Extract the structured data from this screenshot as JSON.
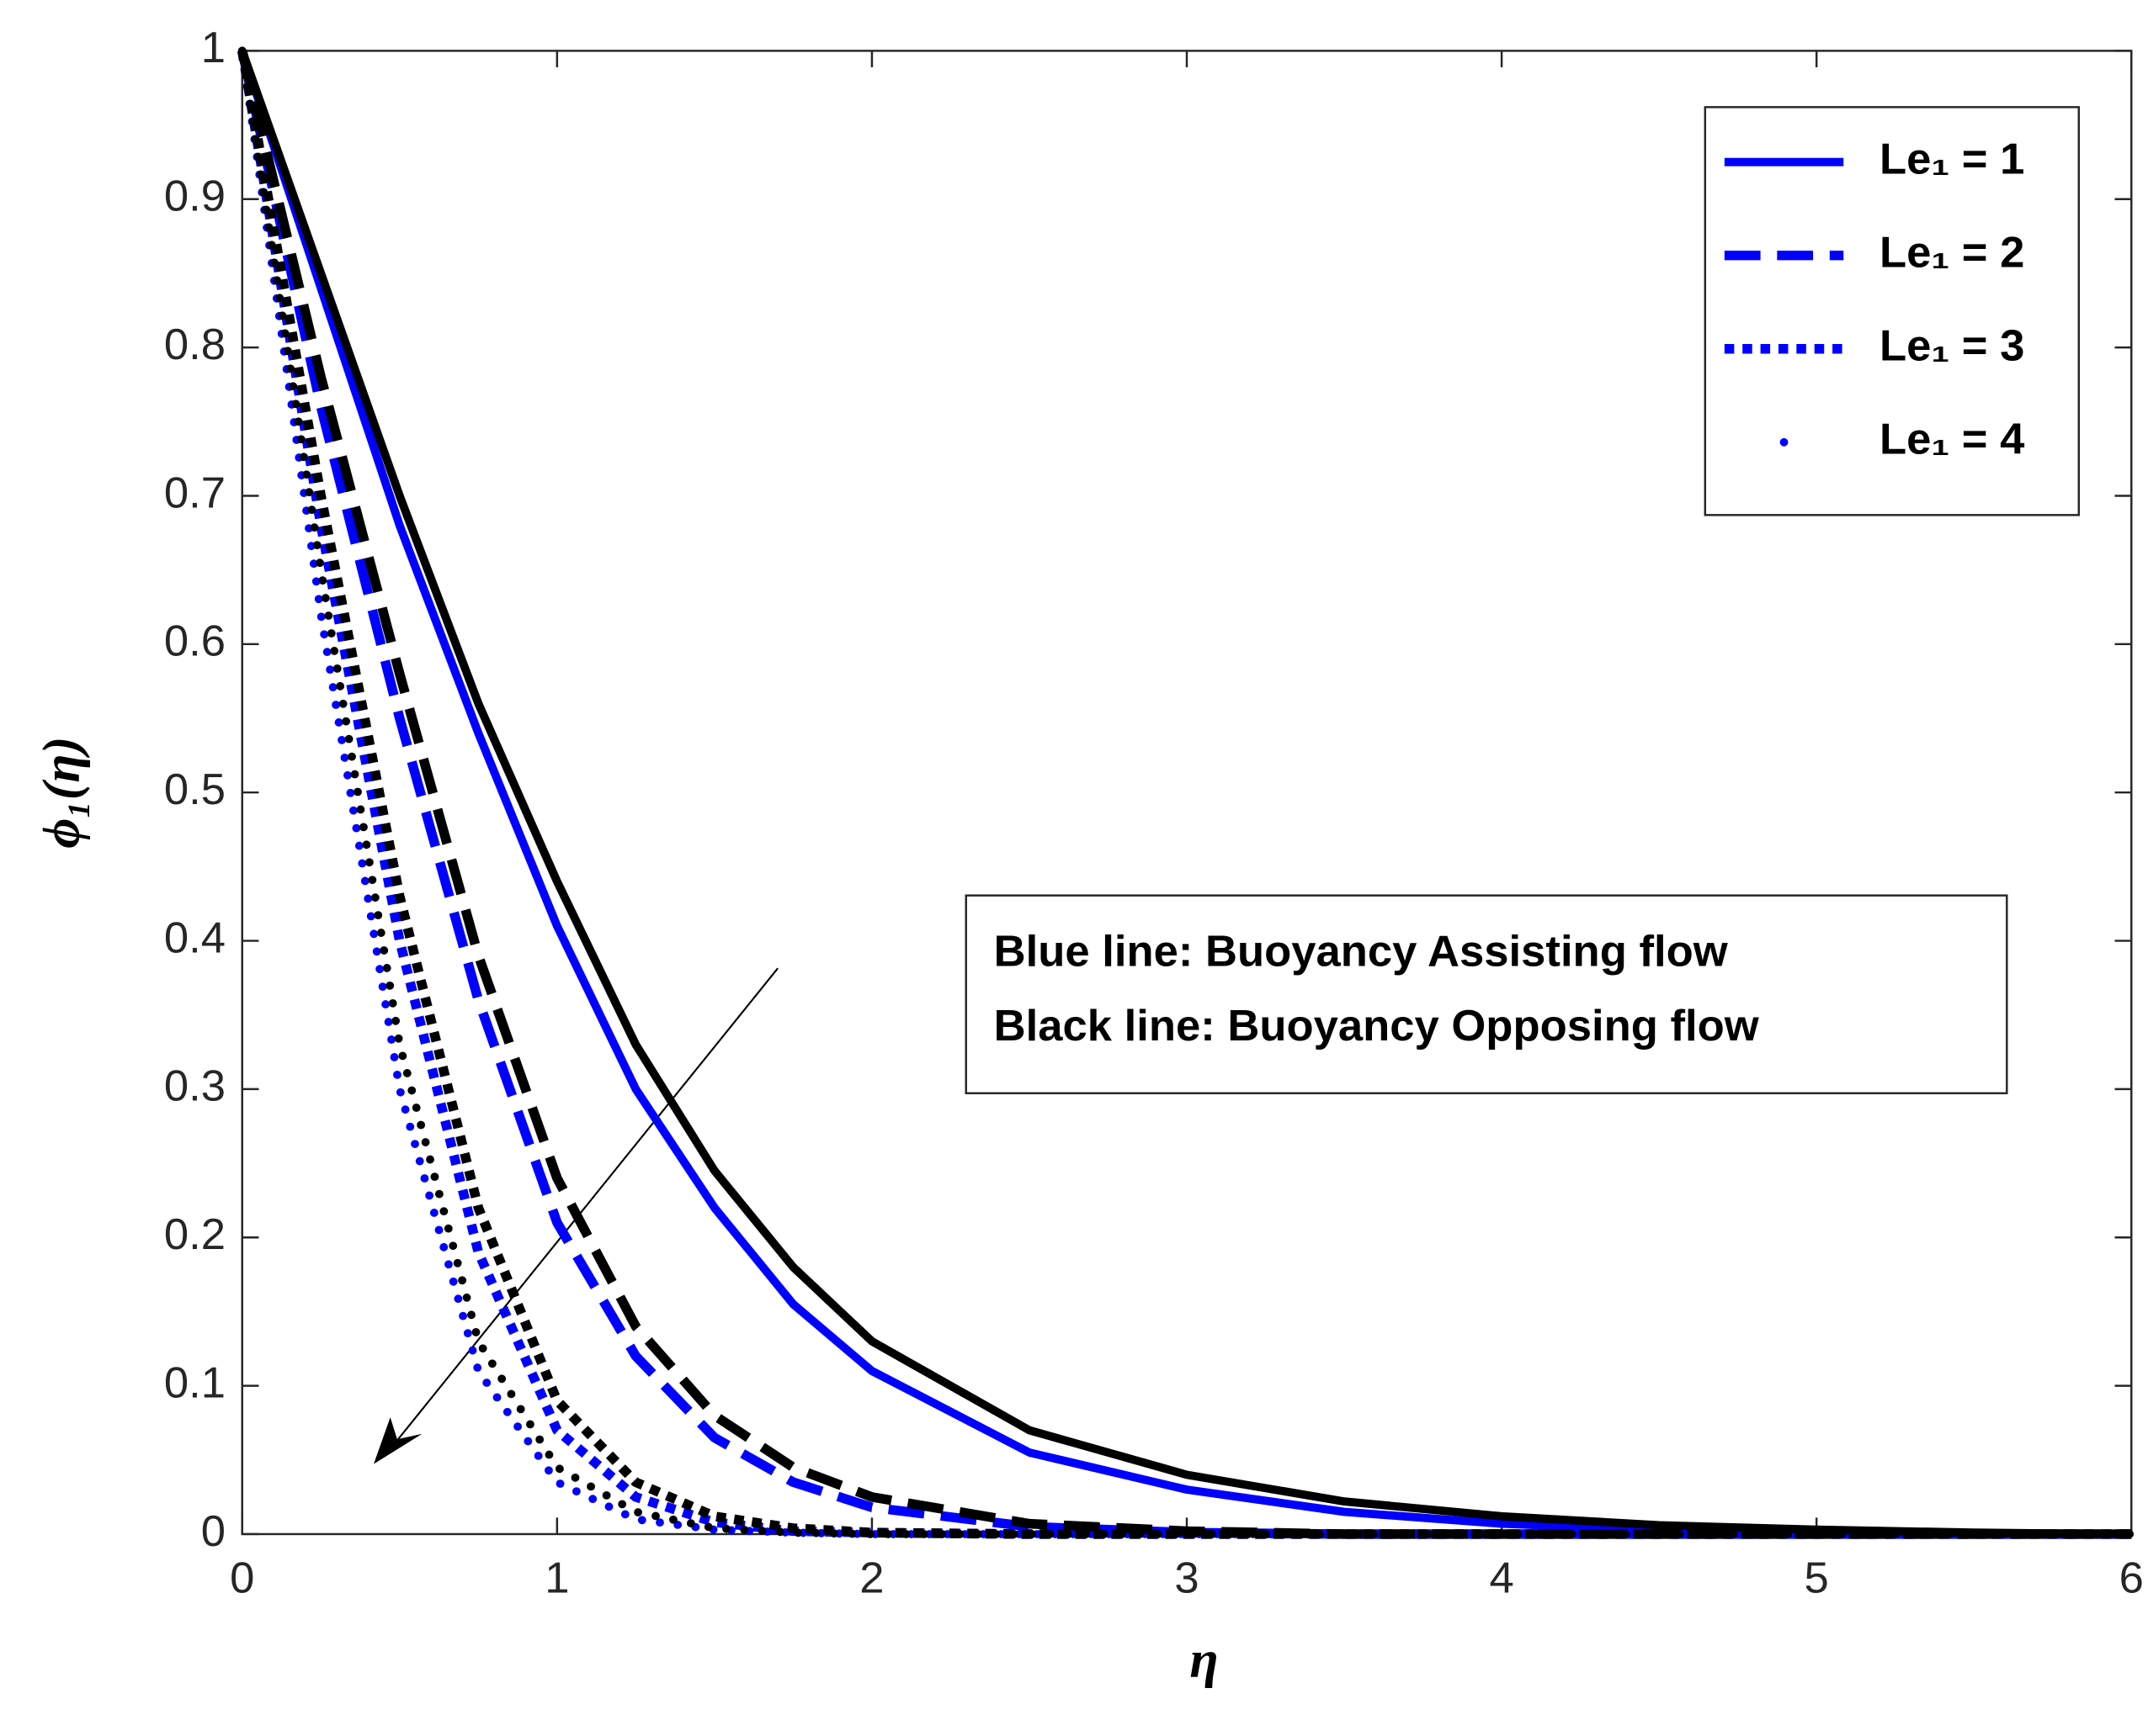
{
  "chart_data": {
    "type": "line",
    "x_label": "η",
    "y_label": "ϕ₁(η)",
    "x": [
      0,
      0.25,
      0.5,
      0.75,
      1,
      1.25,
      1.5,
      1.75,
      2,
      2.5,
      3,
      3.5,
      4,
      4.5,
      5,
      5.5,
      6
    ],
    "series": [
      {
        "name": "Le₁ = 1",
        "color": "#0000ff",
        "style": "solid",
        "values": [
          1,
          0.84,
          0.68,
          0.54,
          0.41,
          0.3,
          0.22,
          0.155,
          0.11,
          0.055,
          0.03,
          0.015,
          0.007,
          0.003,
          0.001,
          0,
          0
        ]
      },
      {
        "name": "Le₁ = 2",
        "color": "#0000ff",
        "style": "dashed",
        "values": [
          1,
          0.76,
          0.55,
          0.36,
          0.21,
          0.12,
          0.065,
          0.035,
          0.018,
          0.005,
          0.001,
          0,
          0,
          0,
          0,
          0,
          0
        ]
      },
      {
        "name": "Le₁ = 3",
        "color": "#0000ff",
        "style": "dotted",
        "values": [
          1,
          0.68,
          0.4,
          0.19,
          0.07,
          0.025,
          0.008,
          0.002,
          0.001,
          0,
          0,
          0,
          0,
          0,
          0,
          0,
          0
        ]
      },
      {
        "name": "Le₁ = 4",
        "color": "#0000ff",
        "style": "points",
        "values": [
          1,
          0.62,
          0.3,
          0.11,
          0.035,
          0.01,
          0.003,
          0.001,
          0,
          0,
          0,
          0,
          0,
          0,
          0,
          0,
          0
        ]
      },
      {
        "color": "#000000",
        "style": "solid",
        "values": [
          1,
          0.85,
          0.7,
          0.56,
          0.44,
          0.33,
          0.245,
          0.18,
          0.13,
          0.07,
          0.04,
          0.022,
          0.012,
          0.006,
          0.003,
          0.001,
          0
        ]
      },
      {
        "color": "#000000",
        "style": "dashed",
        "values": [
          1,
          0.78,
          0.58,
          0.39,
          0.24,
          0.14,
          0.08,
          0.045,
          0.025,
          0.007,
          0.002,
          0,
          0,
          0,
          0,
          0,
          0
        ]
      },
      {
        "color": "#000000",
        "style": "dotted",
        "values": [
          1,
          0.7,
          0.43,
          0.22,
          0.09,
          0.035,
          0.012,
          0.004,
          0.001,
          0,
          0,
          0,
          0,
          0,
          0,
          0,
          0
        ]
      },
      {
        "color": "#000000",
        "style": "points",
        "values": [
          1,
          0.65,
          0.33,
          0.13,
          0.045,
          0.015,
          0.004,
          0.001,
          0,
          0,
          0,
          0,
          0,
          0,
          0,
          0,
          0
        ]
      }
    ],
    "xlim": [
      0,
      6
    ],
    "xticks": [
      0,
      1,
      2,
      3,
      4,
      5,
      6
    ],
    "ylim": [
      0,
      1
    ],
    "yticks": [
      0,
      0.1,
      0.2,
      0.3,
      0.4,
      0.5,
      0.6,
      0.7,
      0.8,
      0.9,
      1
    ],
    "legend": "top-right",
    "annotation": [
      "Blue line: Buoyancy Assisting flow",
      "Black line: Buoyancy Opposing flow"
    ]
  }
}
